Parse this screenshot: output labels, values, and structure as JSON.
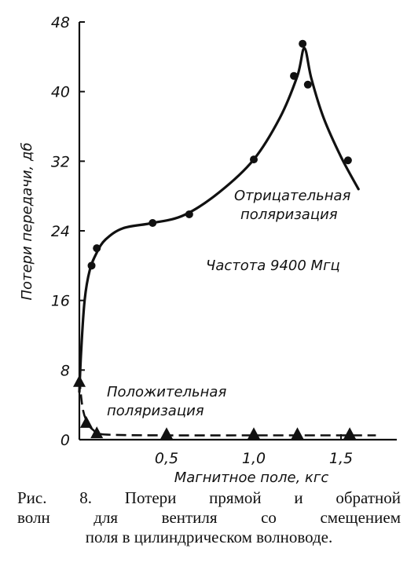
{
  "chart_data": {
    "type": "line",
    "title": "",
    "xlabel": "Магнитное поле, кгс",
    "ylabel": "Потери передачи, дб",
    "xlim": [
      0,
      1.7
    ],
    "ylim": [
      0,
      48
    ],
    "x_ticks": [
      0,
      0.5,
      1.0,
      1.5
    ],
    "x_tick_labels": [
      "",
      "0,5",
      "1,0",
      "1,5"
    ],
    "y_ticks": [
      0,
      8,
      16,
      24,
      32,
      40,
      48
    ],
    "y_tick_labels": [
      "0",
      "8",
      "16",
      "24",
      "32",
      "40",
      "48"
    ],
    "grid": false,
    "legend": "none",
    "series": [
      {
        "name": "Отрицательная поляризация",
        "line_style": "solid",
        "marker": "circle",
        "curve_x": [
          0.0,
          0.01,
          0.03,
          0.06,
          0.1,
          0.15,
          0.25,
          0.42,
          0.6,
          0.8,
          1.0,
          1.15,
          1.25,
          1.29,
          1.33,
          1.4,
          1.5,
          1.6
        ],
        "curve_y": [
          5.5,
          10,
          16,
          19.5,
          21.5,
          23,
          24.3,
          24.9,
          25.8,
          28.4,
          32.2,
          37,
          41.8,
          45,
          41.5,
          37,
          32.5,
          28.8
        ],
        "points_x": [
          0.07,
          0.1,
          0.42,
          0.63,
          1.0,
          1.23,
          1.28,
          1.31,
          1.54
        ],
        "points_y": [
          20,
          22,
          24.9,
          25.9,
          32.2,
          41.8,
          45.5,
          40.8,
          32.1
        ]
      },
      {
        "name": "Положительная поляризация",
        "line_style": "dashed",
        "marker": "triangle",
        "curve_x": [
          0.0,
          0.02,
          0.05,
          0.08,
          0.11,
          0.2,
          0.5,
          1.0,
          1.5,
          1.7
        ],
        "curve_y": [
          7.0,
          3.5,
          1.8,
          1.1,
          0.7,
          0.55,
          0.5,
          0.5,
          0.5,
          0.5
        ],
        "points_x": [
          0.0,
          0.04,
          0.1,
          0.5,
          1.0,
          1.25,
          1.55
        ],
        "points_y": [
          6.5,
          1.8,
          0.6,
          0.5,
          0.5,
          0.5,
          0.5
        ]
      }
    ],
    "annotations": [
      {
        "lines": [
          "Отрицательная",
          "поляризация"
        ]
      },
      {
        "lines": [
          "Частота 9400 Мгц"
        ]
      },
      {
        "lines": [
          "Положительная",
          "поляризация"
        ]
      }
    ]
  },
  "caption": {
    "lines": [
      "Рис. 8. Потери прямой и обратной",
      "волн для вентиля со смещением",
      "поля в цилиндрическом волноводе."
    ]
  }
}
